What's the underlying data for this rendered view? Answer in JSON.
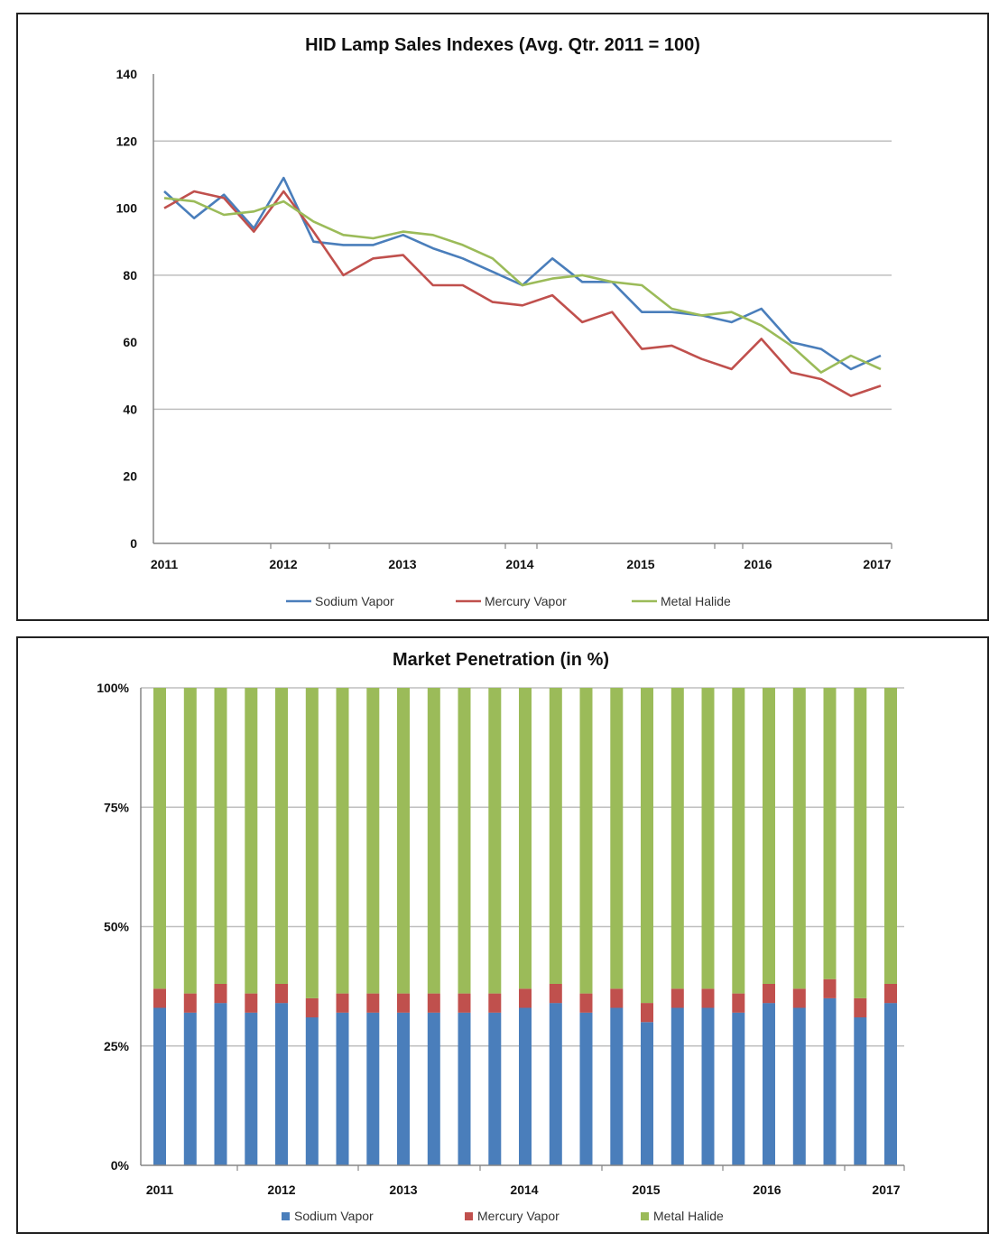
{
  "colors": {
    "sodium": "#4a7ebb",
    "mercury": "#c0504d",
    "halide": "#9bbb59",
    "grid": "#bfbfbf",
    "axis": "#868686"
  },
  "chart_data": [
    {
      "type": "line",
      "title": "HID Lamp Sales Indexes (Avg. Qtr. 2011 = 100)",
      "ylim": [
        0,
        140
      ],
      "yticks": [
        0,
        20,
        40,
        60,
        80,
        100,
        120,
        140
      ],
      "grid_values": [
        40,
        80,
        120
      ],
      "x_tick_labels": [
        "2011",
        "2012",
        "2013",
        "2014",
        "2015",
        "2016",
        "2017"
      ],
      "legend": "bottom",
      "series": [
        {
          "name": "Sodium Vapor",
          "color_key": "sodium",
          "values": [
            105,
            97,
            104,
            94,
            109,
            90,
            89,
            89,
            92,
            88,
            85,
            81,
            77,
            85,
            78,
            78,
            69,
            69,
            68,
            66,
            70,
            60,
            58,
            52,
            56
          ]
        },
        {
          "name": "Mercury Vapor",
          "color_key": "mercury",
          "values": [
            100,
            105,
            103,
            93,
            105,
            93,
            80,
            85,
            86,
            77,
            77,
            72,
            71,
            74,
            66,
            69,
            58,
            59,
            55,
            52,
            61,
            51,
            49,
            44,
            47
          ]
        },
        {
          "name": "Metal Halide",
          "color_key": "halide",
          "values": [
            103,
            102,
            98,
            99,
            102,
            96,
            92,
            91,
            93,
            92,
            89,
            85,
            77,
            79,
            80,
            78,
            77,
            70,
            68,
            69,
            65,
            59,
            51,
            56,
            52
          ]
        }
      ]
    },
    {
      "type": "bar",
      "stacked": true,
      "title": "Market Penetration (in %)",
      "ylim": [
        0,
        100
      ],
      "yticks": [
        "0%",
        "25%",
        "50%",
        "75%",
        "100%"
      ],
      "x_tick_labels": [
        "2011",
        "2012",
        "2013",
        "2014",
        "2015",
        "2016",
        "2017"
      ],
      "legend": "bottom",
      "series": [
        {
          "name": "Sodium Vapor",
          "color_key": "sodium",
          "values": [
            33,
            32,
            34,
            32,
            34,
            31,
            32,
            32,
            32,
            32,
            32,
            32,
            33,
            34,
            32,
            33,
            30,
            33,
            33,
            32,
            34,
            33,
            35,
            31,
            34
          ]
        },
        {
          "name": "Mercury Vapor",
          "color_key": "mercury",
          "values": [
            4,
            4,
            4,
            4,
            4,
            4,
            4,
            4,
            4,
            4,
            4,
            4,
            4,
            4,
            4,
            4,
            4,
            4,
            4,
            4,
            4,
            4,
            4,
            4,
            4
          ]
        },
        {
          "name": "Metal Halide",
          "color_key": "halide",
          "values": [
            63,
            64,
            62,
            64,
            62,
            65,
            64,
            64,
            64,
            64,
            64,
            64,
            63,
            62,
            64,
            63,
            66,
            63,
            63,
            64,
            62,
            63,
            61,
            65,
            62
          ]
        }
      ]
    }
  ]
}
